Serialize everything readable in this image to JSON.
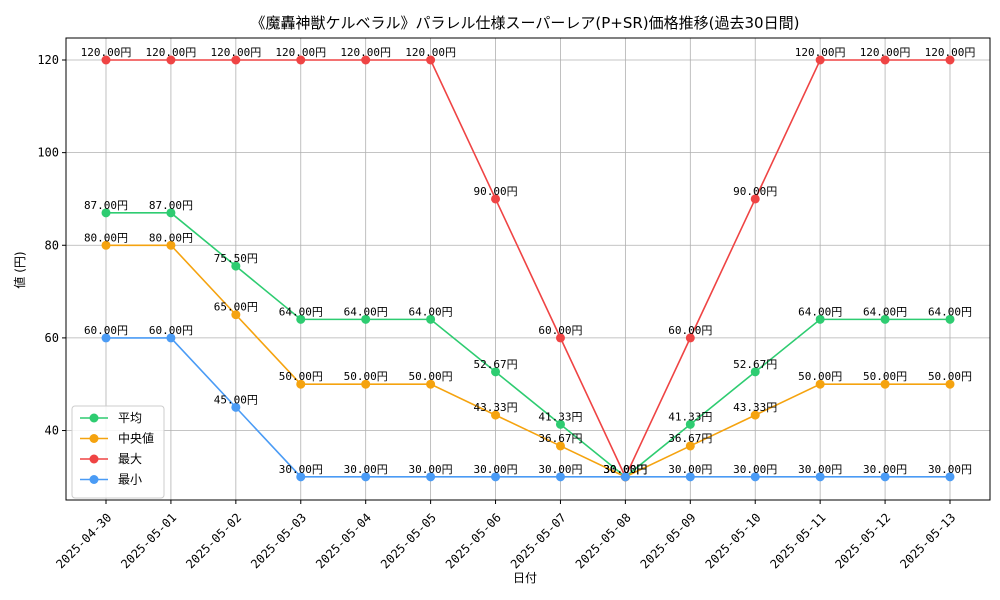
{
  "chart_data": {
    "type": "line",
    "title": "《魔轟神獣ケルベラル》パラレル仕様スーパーレア(P+SR)価格推移(過去30日間)",
    "xlabel": "日付",
    "ylabel": "値 (円)",
    "ylim": [
      25,
      124.75
    ],
    "yticks": [
      40,
      60,
      80,
      100,
      120
    ],
    "grid": true,
    "legend_position": "lower-left",
    "label_suffix": "円",
    "categories": [
      "2025-04-30",
      "2025-05-01",
      "2025-05-02",
      "2025-05-03",
      "2025-05-04",
      "2025-05-05",
      "2025-05-06",
      "2025-05-07",
      "2025-05-08",
      "2025-05-09",
      "2025-05-10",
      "2025-05-11",
      "2025-05-12",
      "2025-05-13"
    ],
    "series": [
      {
        "name": "平均",
        "color": "#2ecc71",
        "values": [
          87,
          87,
          75.5,
          64,
          64,
          64,
          52.67,
          41.33,
          30,
          41.33,
          52.67,
          64,
          64,
          64
        ]
      },
      {
        "name": "中央値",
        "color": "#f5a30f",
        "values": [
          80,
          80,
          65,
          50,
          50,
          50,
          43.33,
          36.67,
          30,
          36.67,
          43.33,
          50,
          50,
          50
        ]
      },
      {
        "name": "最大",
        "color": "#ef4444",
        "values": [
          120,
          120,
          120,
          120,
          120,
          120,
          90,
          60,
          30,
          60,
          90,
          120,
          120,
          120
        ]
      },
      {
        "name": "最小",
        "color": "#4a9bf5",
        "values": [
          60,
          60,
          45,
          30,
          30,
          30,
          30,
          30,
          30,
          30,
          30,
          30,
          30,
          30
        ]
      }
    ]
  }
}
